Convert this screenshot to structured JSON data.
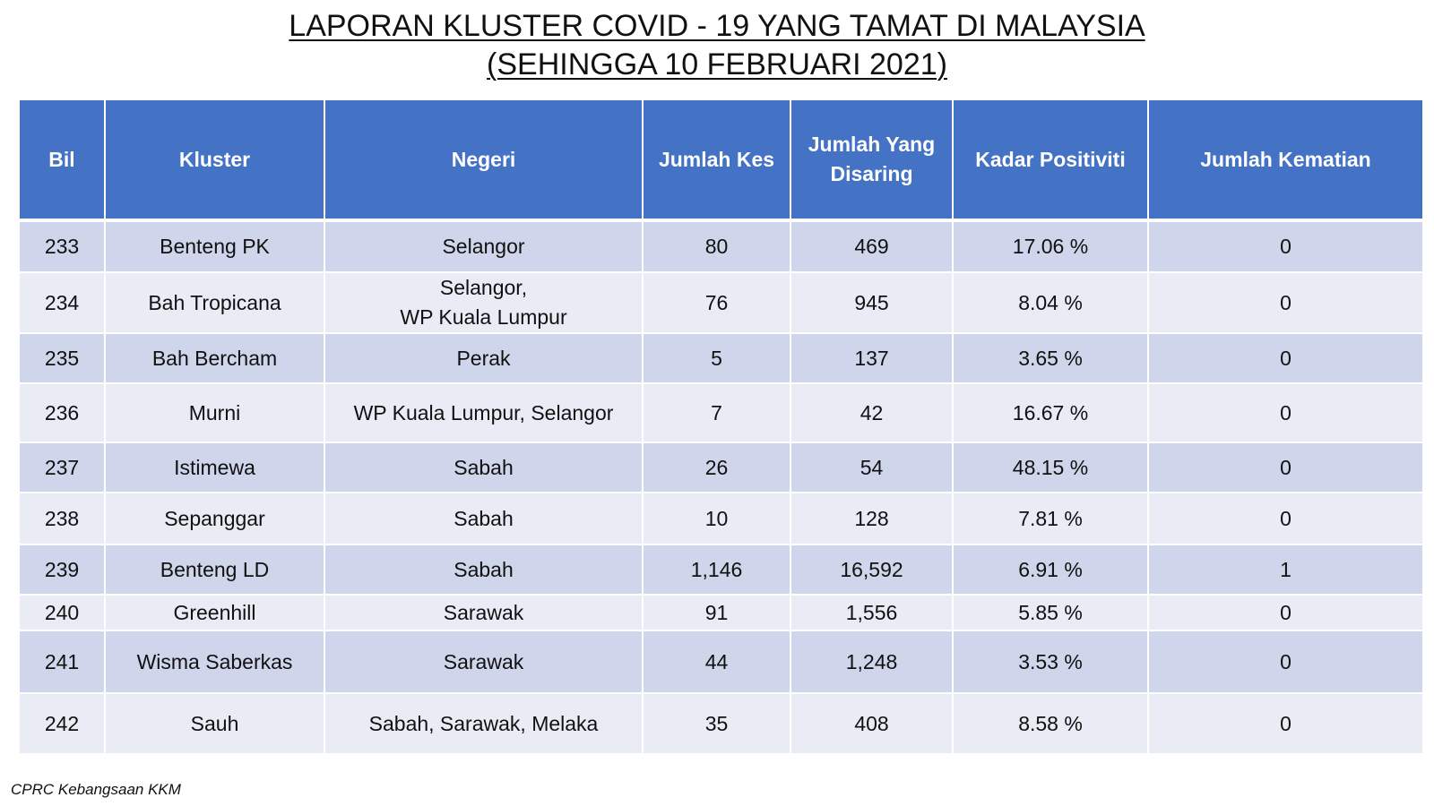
{
  "title": {
    "line1": "LAPORAN KLUSTER COVID - 19 YANG TAMAT DI MALAYSIA",
    "line2": "(SEHINGGA 10 FEBRUARI 2021)"
  },
  "table": {
    "headers": [
      "Bil",
      "Kluster",
      "Negeri",
      "Jumlah Kes",
      "Jumlah Yang Disaring",
      "Kadar Positiviti",
      "Jumlah Kematian"
    ],
    "rows": [
      {
        "bil": "233",
        "kluster": "Benteng PK",
        "negeri": "Selangor",
        "kes": "80",
        "disaring": "469",
        "positiviti": "17.06 %",
        "kematian": "0"
      },
      {
        "bil": "234",
        "kluster": "Bah Tropicana",
        "negeri": "Selangor,\nWP Kuala Lumpur",
        "kes": "76",
        "disaring": "945",
        "positiviti": "8.04 %",
        "kematian": "0"
      },
      {
        "bil": "235",
        "kluster": "Bah Bercham",
        "negeri": "Perak",
        "kes": "5",
        "disaring": "137",
        "positiviti": "3.65 %",
        "kematian": "0"
      },
      {
        "bil": "236",
        "kluster": "Murni",
        "negeri": "WP Kuala Lumpur, Selangor",
        "kes": "7",
        "disaring": "42",
        "positiviti": "16.67 %",
        "kematian": "0"
      },
      {
        "bil": "237",
        "kluster": "Istimewa",
        "negeri": "Sabah",
        "kes": "26",
        "disaring": "54",
        "positiviti": "48.15 %",
        "kematian": "0"
      },
      {
        "bil": "238",
        "kluster": "Sepanggar",
        "negeri": "Sabah",
        "kes": "10",
        "disaring": "128",
        "positiviti": "7.81 %",
        "kematian": "0"
      },
      {
        "bil": "239",
        "kluster": "Benteng LD",
        "negeri": "Sabah",
        "kes": "1,146",
        "disaring": "16,592",
        "positiviti": "6.91 %",
        "kematian": "1"
      },
      {
        "bil": "240",
        "kluster": "Greenhill",
        "negeri": "Sarawak",
        "kes": "91",
        "disaring": "1,556",
        "positiviti": "5.85 %",
        "kematian": "0"
      },
      {
        "bil": "241",
        "kluster": "Wisma Saberkas",
        "negeri": "Sarawak",
        "kes": "44",
        "disaring": "1,248",
        "positiviti": "3.53 %",
        "kematian": "0"
      },
      {
        "bil": "242",
        "kluster": "Sauh",
        "negeri": "Sabah, Sarawak, Melaka",
        "kes": "35",
        "disaring": "408",
        "positiviti": "8.58 %",
        "kematian": "0"
      }
    ]
  },
  "footer": "CPRC Kebangsaan KKM",
  "colors": {
    "header_bg": "#4472c4",
    "row_odd_bg": "#cfd5ea",
    "row_even_bg": "#e9ebf5"
  }
}
